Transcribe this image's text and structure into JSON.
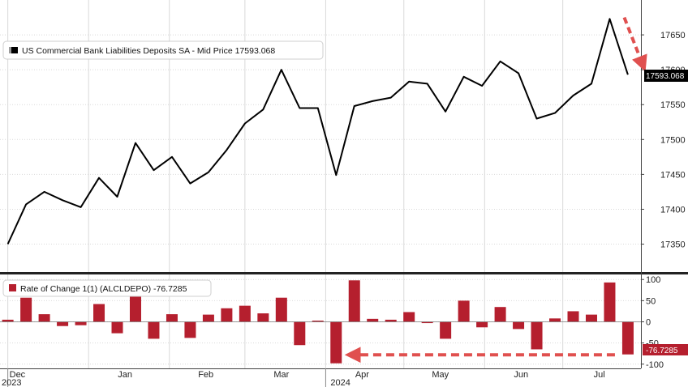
{
  "chart_data": [
    {
      "type": "line",
      "legend": "US Commercial Bank Liabilities Deposits SA - Mid Price 17593.068",
      "last_value_label": "17593.068",
      "ylim": [
        17310,
        17700
      ],
      "y_ticks": [
        17350,
        17400,
        17450,
        17500,
        17550,
        17600,
        17650
      ],
      "color": "#000000",
      "x": [
        "2023-12-01",
        "2023-12-08",
        "2023-12-15",
        "2023-12-22",
        "2023-12-29",
        "2024-01-05",
        "2024-01-12",
        "2024-01-19",
        "2024-01-26",
        "2024-02-02",
        "2024-02-09",
        "2024-02-16",
        "2024-02-23",
        "2024-03-01",
        "2024-03-08",
        "2024-03-15",
        "2024-03-22",
        "2024-03-29",
        "2024-04-05",
        "2024-04-12",
        "2024-04-19",
        "2024-04-26",
        "2024-05-03",
        "2024-05-10",
        "2024-05-17",
        "2024-05-24",
        "2024-05-31",
        "2024-06-07",
        "2024-06-14",
        "2024-06-21",
        "2024-06-28",
        "2024-07-05",
        "2024-07-12",
        "2024-07-19",
        "2024-07-26"
      ],
      "values": [
        17350,
        17407,
        17425,
        17413,
        17403,
        17445,
        17418,
        17495,
        17456,
        17475,
        17437,
        17453,
        17485,
        17523,
        17543,
        17600,
        17545,
        17545,
        17449,
        17548,
        17555,
        17560,
        17583,
        17580,
        17540,
        17590,
        17577,
        17612,
        17595,
        17530,
        17538,
        17563,
        17580,
        17673,
        17593
      ]
    },
    {
      "type": "bar",
      "legend": "Rate of Change 1(1) (ALCLDEPO) -76.7285",
      "last_value_label": "-76.7285",
      "ylim": [
        -110,
        110
      ],
      "y_ticks": [
        -100,
        -50,
        0,
        50,
        100
      ],
      "color": "#b51f2e",
      "x": [
        "2023-12-01",
        "2023-12-08",
        "2023-12-15",
        "2023-12-22",
        "2023-12-29",
        "2024-01-05",
        "2024-01-12",
        "2024-01-19",
        "2024-01-26",
        "2024-02-02",
        "2024-02-09",
        "2024-02-16",
        "2024-02-23",
        "2024-03-01",
        "2024-03-08",
        "2024-03-15",
        "2024-03-22",
        "2024-03-29",
        "2024-04-05",
        "2024-04-12",
        "2024-04-19",
        "2024-04-26",
        "2024-05-03",
        "2024-05-10",
        "2024-05-17",
        "2024-05-24",
        "2024-05-31",
        "2024-06-07",
        "2024-06-14",
        "2024-06-21",
        "2024-06-28",
        "2024-07-05",
        "2024-07-12",
        "2024-07-19",
        "2024-07-26"
      ],
      "values": [
        5,
        57,
        18,
        -10,
        -8,
        42,
        -27,
        62,
        -40,
        18,
        -38,
        17,
        32,
        38,
        20,
        57,
        -55,
        0,
        -98,
        98,
        7,
        5,
        23,
        -3,
        -40,
        50,
        -13,
        35,
        -17,
        -65,
        8,
        25,
        17,
        93,
        -77
      ]
    }
  ],
  "x_axis": {
    "month_labels": [
      {
        "label": "Dec",
        "date": "2023-12-01"
      },
      {
        "label": "Jan",
        "date": "2024-01-01"
      },
      {
        "label": "Feb",
        "date": "2024-02-01"
      },
      {
        "label": "Mar",
        "date": "2024-03-01"
      },
      {
        "label": "Apr",
        "date": "2024-04-01"
      },
      {
        "label": "May",
        "date": "2024-05-01"
      },
      {
        "label": "Jun",
        "date": "2024-06-01"
      },
      {
        "label": "Jul",
        "date": "2024-07-01"
      }
    ],
    "year_labels": [
      {
        "label": "2023",
        "date": "2023-12-01"
      },
      {
        "label": "2024",
        "date": "2024-04-01"
      }
    ],
    "grid": true
  },
  "annotations": {
    "arrow_color": "#e0504f"
  }
}
